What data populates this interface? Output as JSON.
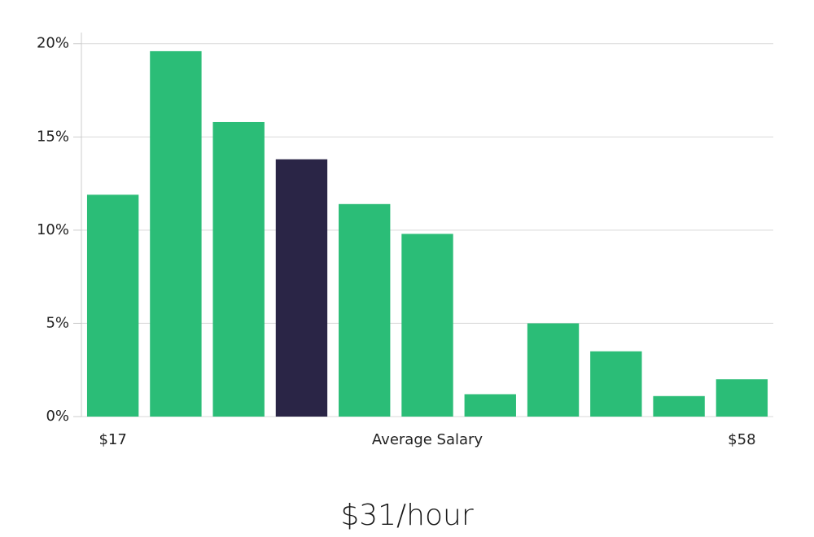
{
  "chart_data": {
    "type": "bar",
    "subtitle": "$31/hour",
    "x_label": "Average Salary",
    "categories": [
      "$17",
      null,
      null,
      null,
      null,
      null,
      null,
      null,
      null,
      null,
      "$58"
    ],
    "values": [
      11.9,
      19.6,
      15.8,
      13.8,
      11.4,
      9.8,
      1.2,
      5.0,
      3.5,
      1.1,
      2.0
    ],
    "colors": [
      "#2bbd77",
      "#2bbd77",
      "#2bbd77",
      "#2a2546",
      "#2bbd77",
      "#2bbd77",
      "#2bbd77",
      "#2bbd77",
      "#2bbd77",
      "#2bbd77",
      "#2bbd77"
    ],
    "ylim": [
      0,
      20.6
    ],
    "yticks": [
      {
        "value": 0,
        "label": "0%"
      },
      {
        "value": 5,
        "label": "5%"
      },
      {
        "value": 10,
        "label": "10%"
      },
      {
        "value": 15,
        "label": "15%"
      },
      {
        "value": 20,
        "label": "20%"
      }
    ],
    "grid": true
  }
}
